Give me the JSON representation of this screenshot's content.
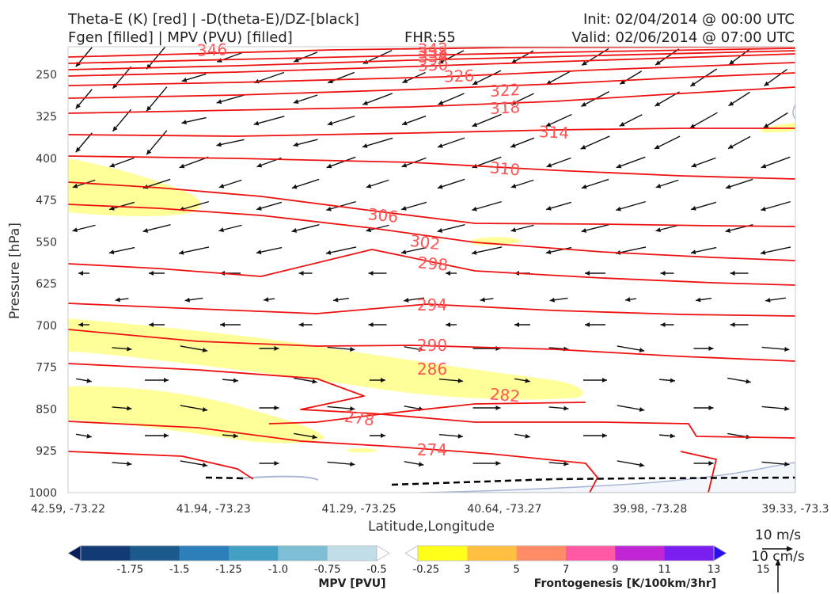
{
  "header": {
    "title_line1": "Theta-E (K) [red] | -D(theta-E)/DZ-[black]",
    "title_line2": "Fgen [filled] | MPV (PVU) [filled]",
    "fhr": "FHR:55",
    "init": "Init: 02/04/2014 @ 00:00 UTC",
    "valid": "Valid: 02/06/2014 @ 07:00 UTC"
  },
  "chart_data": {
    "type": "cross-section",
    "xlabel": "Latitude,Longitude",
    "ylabel": "Pressure [hPa]",
    "x_ticks": [
      "42.59, -73.22",
      "41.94, -73.23",
      "41.29, -73.25",
      "40.64, -73.27",
      "39.98, -73.28",
      "39.33, -73.3"
    ],
    "y_ticks": [
      250,
      325,
      400,
      475,
      550,
      625,
      700,
      775,
      850,
      925,
      1000
    ],
    "ylim": [
      1000,
      200
    ],
    "contour_labels": [
      "346",
      "342",
      "338",
      "334",
      "330",
      "326",
      "322",
      "318",
      "314",
      "310",
      "306",
      "302",
      "298",
      "294",
      "290",
      "286",
      "282",
      "278",
      "274"
    ],
    "contour_color": "#ee1111",
    "label_color": "#ff5555",
    "fgen_fill_color": "#ffff99",
    "terrain_color": "#a9b7d4"
  },
  "colorbars": {
    "mpv": {
      "title": "MPV [PVU]",
      "ticks": [
        "-1.75",
        "-1.5",
        "-1.25",
        "-1.0",
        "-0.75",
        "-0.5",
        "-0.25"
      ],
      "colors": [
        "#081d58",
        "#123b75",
        "#1c5a8e",
        "#2c7fb8",
        "#41a0c4",
        "#7fbfd6",
        "#c0dde8",
        "#ffffff"
      ]
    },
    "fgen": {
      "title": "Frontogenesis [K/100km/3hr]",
      "ticks": [
        "3",
        "5",
        "7",
        "9",
        "11",
        "13",
        "15"
      ],
      "colors": [
        "#ffffff",
        "#ffff1a",
        "#ffbf40",
        "#ff8c66",
        "#ff59a6",
        "#c026d3",
        "#7a1ff0",
        "#2a10f0"
      ]
    }
  },
  "reference_vectors": {
    "horizontal": "10 m/s",
    "vertical": "10 cm/s"
  }
}
